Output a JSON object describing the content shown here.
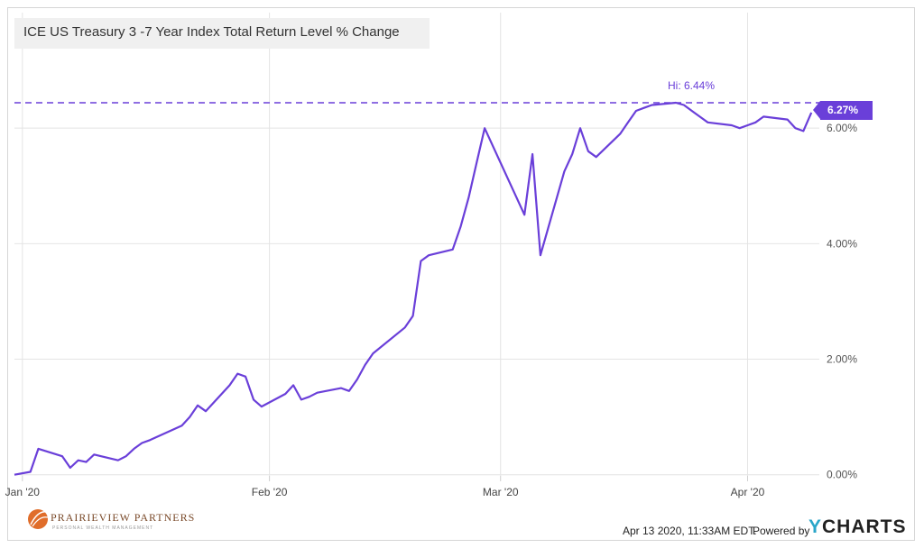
{
  "chart_data": {
    "type": "line",
    "title": "ICE US Treasury 3 -7 Year Index Total Return Level % Change",
    "x_tick_labels": [
      "Jan '20",
      "Feb '20",
      "Mar '20",
      "Apr '20"
    ],
    "y_tick_labels": [
      "0.00%",
      "2.00%",
      "4.00%",
      "6.00%"
    ],
    "ylim": [
      -0.02,
      8.0
    ],
    "grid": true,
    "series": [
      {
        "color": "#6a3fd9",
        "x": [
          "2019-12-31",
          "2020-01-02",
          "2020-01-03",
          "2020-01-06",
          "2020-01-07",
          "2020-01-08",
          "2020-01-09",
          "2020-01-10",
          "2020-01-13",
          "2020-01-14",
          "2020-01-15",
          "2020-01-16",
          "2020-01-17",
          "2020-01-21",
          "2020-01-22",
          "2020-01-23",
          "2020-01-24",
          "2020-01-27",
          "2020-01-28",
          "2020-01-29",
          "2020-01-30",
          "2020-01-31",
          "2020-02-03",
          "2020-02-04",
          "2020-02-05",
          "2020-02-06",
          "2020-02-07",
          "2020-02-10",
          "2020-02-11",
          "2020-02-12",
          "2020-02-13",
          "2020-02-14",
          "2020-02-18",
          "2020-02-19",
          "2020-02-20",
          "2020-02-21",
          "2020-02-24",
          "2020-02-25",
          "2020-02-26",
          "2020-02-27",
          "2020-02-28",
          "2020-03-02",
          "2020-03-03",
          "2020-03-04",
          "2020-03-05",
          "2020-03-06",
          "2020-03-09",
          "2020-03-10",
          "2020-03-11",
          "2020-03-12",
          "2020-03-13",
          "2020-03-16",
          "2020-03-17",
          "2020-03-18",
          "2020-03-19",
          "2020-03-20",
          "2020-03-23",
          "2020-03-24",
          "2020-03-25",
          "2020-03-26",
          "2020-03-27",
          "2020-03-30",
          "2020-03-31",
          "2020-04-01",
          "2020-04-02",
          "2020-04-03",
          "2020-04-06",
          "2020-04-07",
          "2020-04-08",
          "2020-04-09"
        ],
        "y": [
          0.0,
          0.05,
          0.45,
          0.32,
          0.12,
          0.25,
          0.22,
          0.35,
          0.25,
          0.32,
          0.45,
          0.55,
          0.6,
          0.85,
          1.0,
          1.2,
          1.1,
          1.55,
          1.75,
          1.7,
          1.3,
          1.18,
          1.4,
          1.55,
          1.3,
          1.35,
          1.42,
          1.5,
          1.45,
          1.65,
          1.9,
          2.1,
          2.55,
          2.75,
          3.7,
          3.8,
          3.9,
          4.3,
          4.8,
          5.4,
          6.0,
          5.1,
          4.8,
          4.5,
          5.55,
          3.8,
          5.25,
          5.55,
          6.0,
          5.6,
          5.5,
          5.9,
          6.1,
          6.3,
          6.35,
          6.4,
          6.44,
          6.4,
          6.3,
          6.2,
          6.1,
          6.05,
          6.0,
          6.05,
          6.1,
          6.2,
          6.15,
          6.0,
          5.95,
          6.27
        ]
      }
    ],
    "annotations": {
      "high_label": "Hi: 6.44%",
      "high_value": 6.44,
      "last_label": "6.27%",
      "last_value": 6.27
    }
  },
  "footer": {
    "date": "Apr 13 2020, 11:33AM EDT.",
    "powered": "Powered by",
    "ycharts_y": "Y",
    "ycharts_rest": "CHARTS",
    "brand_name": "PRAIRIEVIEW PARTNERS",
    "brand_tagline": "PERSONAL WEALTH MANAGEMENT"
  },
  "colors": {
    "line": "#6a3fd9",
    "grid": "#e4e4e4",
    "ycharts_accent": "#2aa6c9"
  }
}
